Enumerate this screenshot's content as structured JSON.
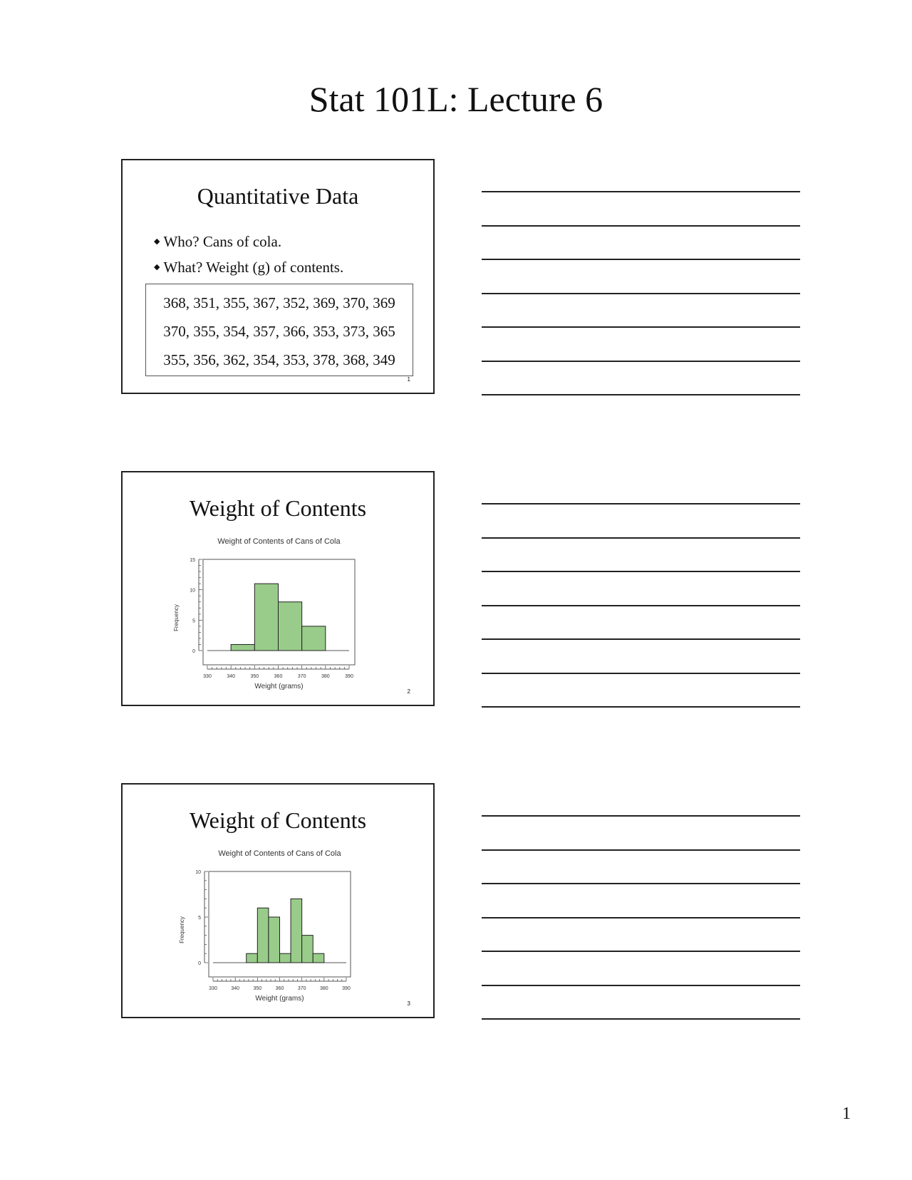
{
  "page": {
    "title": "Stat 101L: Lecture 6",
    "page_number": "1"
  },
  "slides": [
    {
      "heading": "Quantitative Data",
      "bullet_symbol": "◆",
      "bullets": [
        "Who? Cans of cola.",
        "What? Weight (g) of contents."
      ],
      "data_rows": [
        "368, 351, 355, 367, 352, 369, 370, 369",
        "370, 355, 354, 357, 366, 353, 373, 365",
        "355, 356, 362, 354, 353, 378, 368, 349"
      ],
      "number": "1"
    },
    {
      "heading": "Weight of Contents",
      "number": "2"
    },
    {
      "heading": "Weight of Contents",
      "number": "3"
    }
  ],
  "chart_data": [
    {
      "type": "bar",
      "title": "Weight of Contents of Cans of Cola",
      "xlabel": "Weight (grams)",
      "ylabel": "Frequency",
      "xlim": [
        330,
        390
      ],
      "ylim": [
        0,
        15
      ],
      "xticks": [
        "330",
        "340",
        "350",
        "360",
        "370",
        "380",
        "390"
      ],
      "yticks": [
        "0",
        "5",
        "10",
        "15"
      ],
      "bin_width": 10,
      "bins": [
        {
          "x0": 340,
          "x1": 350,
          "value": 1
        },
        {
          "x0": 350,
          "x1": 360,
          "value": 11
        },
        {
          "x0": 360,
          "x1": 370,
          "value": 8
        },
        {
          "x0": 370,
          "x1": 380,
          "value": 4
        }
      ],
      "bar_color": "#99cc8a",
      "grid": false
    },
    {
      "type": "bar",
      "title": "Weight of Contents of Cans of Cola",
      "xlabel": "Weight (grams)",
      "ylabel": "Frequency",
      "xlim": [
        330,
        390
      ],
      "ylim": [
        0,
        10
      ],
      "xticks": [
        "330",
        "340",
        "350",
        "360",
        "370",
        "380",
        "390"
      ],
      "yticks": [
        "0",
        "5",
        "10"
      ],
      "bin_width": 5,
      "bins": [
        {
          "x0": 345,
          "x1": 350,
          "value": 1
        },
        {
          "x0": 350,
          "x1": 355,
          "value": 6
        },
        {
          "x0": 355,
          "x1": 360,
          "value": 5
        },
        {
          "x0": 360,
          "x1": 365,
          "value": 1
        },
        {
          "x0": 365,
          "x1": 370,
          "value": 7
        },
        {
          "x0": 370,
          "x1": 375,
          "value": 3
        },
        {
          "x0": 375,
          "x1": 380,
          "value": 1
        }
      ],
      "bar_color": "#99cc8a",
      "grid": false
    }
  ]
}
